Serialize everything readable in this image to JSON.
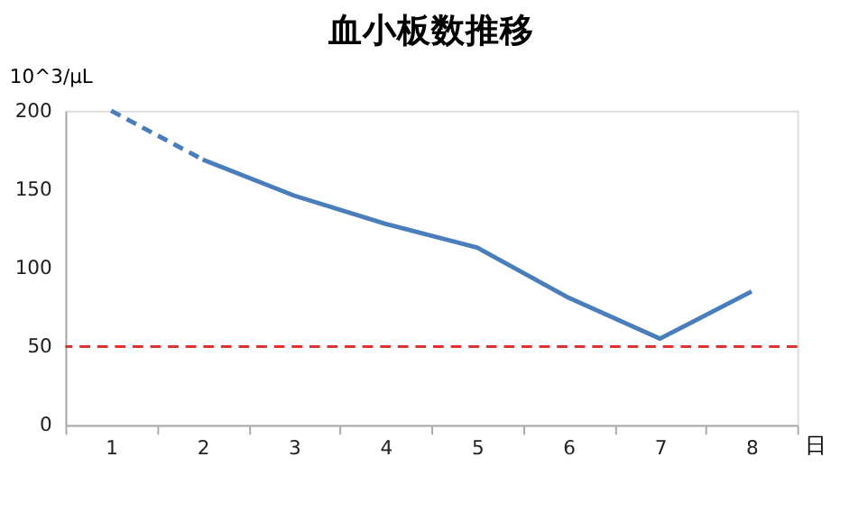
{
  "chart_data": {
    "type": "line",
    "title": "血小板数推移",
    "ylabel": "10^3/μL",
    "xlabel": "日",
    "categories": [
      "1",
      "2",
      "3",
      "4",
      "5",
      "6",
      "7",
      "8"
    ],
    "series": [
      {
        "color": "#4a7ebb",
        "line_style": "dashed",
        "values": [
          200,
          169,
          null,
          null,
          null,
          null,
          null,
          null
        ]
      },
      {
        "color": "#4a7ebb",
        "line_style": "solid",
        "values": [
          null,
          169,
          146,
          128,
          113,
          81,
          55,
          85
        ]
      }
    ],
    "ylim": [
      0,
      200
    ],
    "yticks": [
      0,
      50,
      100,
      150,
      200
    ],
    "grid": false,
    "marker": "none",
    "ref_lines": [
      {
        "axis": "y",
        "value": 50,
        "color": "#e03030",
        "line_style": "dashed"
      }
    ]
  }
}
